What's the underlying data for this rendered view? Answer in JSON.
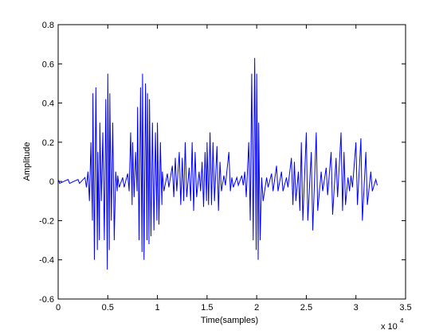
{
  "chart_data": {
    "type": "line",
    "xlabel": "Time(samples)",
    "ylabel": "Amplitude",
    "x_multiplier": {
      "base": "x 10",
      "exponent": "4"
    },
    "x": [
      0,
      150,
      1000,
      1150,
      2000,
      2150,
      2700,
      2850,
      3000,
      3150,
      3300,
      3450,
      3500,
      3650,
      3800,
      3950,
      4000,
      4150,
      4200,
      4350,
      4500,
      4650,
      4800,
      4950,
      5000,
      5150,
      5200,
      5350,
      5500,
      5650,
      5800,
      5950,
      6000,
      6150,
      6500,
      6650,
      7000,
      7150,
      7300,
      7450,
      7500,
      7650,
      7800,
      7950,
      8000,
      8150,
      8300,
      8450,
      8500,
      8650,
      8800,
      8950,
      9000,
      9150,
      9200,
      9350,
      9500,
      9650,
      9800,
      9950,
      10000,
      10150,
      10300,
      10450,
      10500,
      10650,
      11000,
      11150,
      11500,
      11650,
      11800,
      11950,
      12200,
      12350,
      12500,
      12650,
      12800,
      12950,
      13200,
      13350,
      13500,
      13650,
      13800,
      13950,
      14200,
      14350,
      14500,
      14650,
      14800,
      14950,
      15000,
      15150,
      15300,
      15450,
      15600,
      15750,
      16000,
      16150,
      16300,
      16450,
      16700,
      16850,
      17200,
      17350,
      17500,
      17650,
      18000,
      18150,
      18500,
      18650,
      18800,
      18950,
      19200,
      19350,
      19500,
      19650,
      19800,
      19950,
      20000,
      20150,
      20200,
      20350,
      20500,
      20650,
      21000,
      21150,
      21500,
      21650,
      22000,
      22150,
      22500,
      22650,
      23000,
      23150,
      23500,
      23650,
      23800,
      23950,
      24200,
      24350,
      24500,
      24650,
      25000,
      25150,
      25500,
      25650,
      26000,
      26150,
      26500,
      26650,
      27000,
      27150,
      27500,
      27650,
      28000,
      28150,
      28500,
      28650,
      28800,
      28950,
      29200,
      29350,
      29500,
      29650,
      30000,
      30150,
      30500,
      30650,
      31000,
      31150,
      31500,
      31650,
      32000,
      32150
    ],
    "series": [
      {
        "color": "#0000ff",
        "values": [
          0.01,
          -0.01,
          0.01,
          -0.01,
          0.01,
          -0.01,
          0.02,
          -0.03,
          0.05,
          -0.1,
          0.2,
          -0.2,
          0.45,
          -0.4,
          0.48,
          -0.35,
          0.15,
          -0.3,
          0.3,
          -0.1,
          0.25,
          -0.3,
          0.42,
          -0.45,
          0.55,
          -0.35,
          0.45,
          -0.2,
          0.3,
          -0.3,
          0.05,
          -0.05,
          0.03,
          -0.03,
          0.02,
          -0.03,
          0.04,
          -0.05,
          0.25,
          -0.12,
          0.2,
          -0.08,
          0.15,
          -0.05,
          0.38,
          -0.3,
          0.48,
          -0.36,
          0.55,
          -0.4,
          0.5,
          -0.3,
          0.45,
          -0.32,
          0.42,
          -0.28,
          0.3,
          -0.25,
          0.25,
          -0.2,
          0.3,
          -0.22,
          0.2,
          -0.12,
          0.05,
          -0.05,
          0.04,
          -0.03,
          0.08,
          -0.08,
          0.12,
          -0.05,
          0.15,
          -0.12,
          0.12,
          -0.1,
          0.2,
          -0.08,
          0.07,
          -0.1,
          0.2,
          -0.15,
          0.15,
          -0.08,
          0.05,
          -0.05,
          0.1,
          -0.13,
          0.15,
          -0.1,
          0.2,
          -0.12,
          0.25,
          -0.12,
          0.2,
          -0.1,
          0.18,
          -0.15,
          0.1,
          -0.05,
          0.03,
          -0.02,
          0.15,
          -0.05,
          0.02,
          -0.03,
          0.02,
          -0.02,
          0.03,
          -0.02,
          0.05,
          -0.08,
          0.2,
          -0.2,
          0.55,
          -0.3,
          0.63,
          -0.35,
          0.55,
          -0.4,
          0.3,
          -0.3,
          0.02,
          -0.1,
          0.02,
          -0.03,
          0.04,
          -0.05,
          0.08,
          -0.05,
          0.05,
          -0.05,
          0.02,
          -0.03,
          0.12,
          -0.12,
          0.1,
          -0.1,
          0.05,
          -0.15,
          0.2,
          -0.2,
          0.25,
          -0.2,
          0.15,
          -0.25,
          0.25,
          -0.15,
          0.05,
          -0.05,
          0.07,
          -0.07,
          0.15,
          -0.17,
          0.12,
          -0.08,
          0.25,
          -0.15,
          0.15,
          -0.12,
          0.02,
          -0.05,
          0.03,
          -0.03,
          0.2,
          -0.12,
          0.22,
          -0.2,
          0.15,
          -0.12,
          0.05,
          -0.05,
          0.01,
          -0.02
        ]
      }
    ],
    "xlim": [
      0,
      35000
    ],
    "xticks": [
      0,
      {
        "value": 5000,
        "label": "0.5"
      },
      {
        "value": 10000,
        "label": "1"
      },
      {
        "value": 15000,
        "label": "1.5"
      },
      {
        "value": 20000,
        "label": "2"
      },
      {
        "value": 25000,
        "label": "2.5"
      },
      {
        "value": 30000,
        "label": "3"
      },
      {
        "value": 35000,
        "label": "3.5"
      }
    ],
    "ylim": [
      -0.6,
      0.8
    ],
    "yticks": [
      -0.6,
      -0.4,
      -0.2,
      0,
      0.2,
      0.4,
      0.6,
      0.8
    ],
    "grid": false
  }
}
